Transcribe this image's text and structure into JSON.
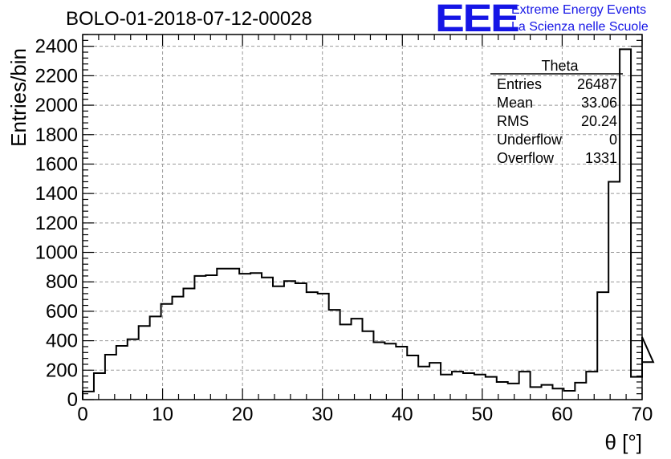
{
  "header": {
    "title": "BOLO-01-2018-07-12-00028",
    "logo_text": "EEE",
    "logo_line1": "Extreme Energy Events",
    "logo_line2": "La Scienza nelle Scuole",
    "logo_color": "#1515e6"
  },
  "stats_box": {
    "name": "Theta",
    "rows": [
      {
        "label": "Entries",
        "value": "26487"
      },
      {
        "label": "Mean",
        "value": "33.06"
      },
      {
        "label": "RMS",
        "value": "20.24"
      },
      {
        "label": "Underflow",
        "value": "0"
      },
      {
        "label": "Overflow",
        "value": "1331"
      }
    ]
  },
  "chart_data": {
    "type": "histogram",
    "xlabel": "θ [°]",
    "ylabel": "Entries/bin",
    "xlim": [
      0,
      70
    ],
    "ylim": [
      0,
      2480
    ],
    "x_ticks": [
      0,
      10,
      20,
      30,
      40,
      50,
      60,
      70
    ],
    "y_ticks": [
      0,
      200,
      400,
      600,
      800,
      1000,
      1200,
      1400,
      1600,
      1800,
      2000,
      2200,
      2400
    ],
    "grid": true,
    "bin_width": 1.4,
    "bin_start": 0,
    "values": [
      55,
      180,
      305,
      365,
      410,
      500,
      565,
      650,
      700,
      755,
      840,
      845,
      890,
      890,
      855,
      860,
      830,
      770,
      805,
      790,
      730,
      720,
      610,
      510,
      550,
      465,
      390,
      380,
      360,
      300,
      225,
      250,
      170,
      190,
      180,
      170,
      155,
      120,
      110,
      190,
      85,
      100,
      75,
      60,
      115,
      190,
      730,
      1480,
      2380,
      155,
      425,
      255
    ]
  }
}
